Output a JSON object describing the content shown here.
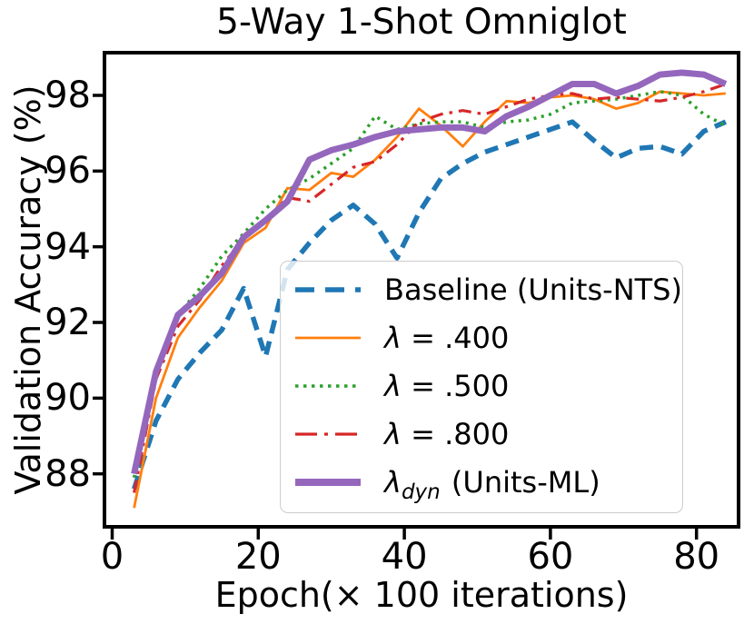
{
  "chart_data": {
    "type": "line",
    "title": "5-Way 1-Shot Omniglot",
    "x_axis": {
      "label": "Epoch(× 100 iterations)",
      "ticks": [
        0,
        20,
        40,
        60,
        80
      ],
      "range": [
        -1,
        86
      ]
    },
    "y_axis": {
      "label": "Validation Accuracy (%)",
      "ticks": [
        88,
        90,
        92,
        94,
        96,
        98
      ],
      "range": [
        86.6,
        99.1
      ]
    },
    "grid": false,
    "legend_position": "inside lower-right",
    "x": [
      3,
      6,
      9,
      12,
      15,
      18,
      21,
      24,
      27,
      30,
      33,
      36,
      39,
      42,
      45,
      48,
      51,
      54,
      57,
      60,
      63,
      66,
      69,
      72,
      75,
      78,
      81,
      84
    ],
    "series": [
      {
        "name": "Baseline (Units-NTS)",
        "color": "#1f77b4",
        "style": "dashed",
        "width": 5.5,
        "values": [
          87.6,
          89.4,
          90.5,
          91.2,
          91.8,
          92.9,
          91.1,
          93.4,
          94.1,
          94.7,
          95.1,
          94.6,
          93.7,
          94.9,
          95.8,
          96.2,
          96.5,
          96.7,
          96.9,
          97.1,
          97.3,
          96.8,
          96.35,
          96.6,
          96.65,
          96.45,
          97.05,
          97.3
        ]
      },
      {
        "name": "λ = .400",
        "color": "#ff7f0e",
        "style": "solid",
        "width": 2.8,
        "values": [
          87.1,
          90.0,
          91.6,
          92.4,
          93.1,
          94.1,
          94.5,
          95.55,
          95.5,
          95.95,
          95.85,
          96.3,
          96.9,
          97.65,
          97.2,
          96.65,
          97.3,
          97.85,
          97.8,
          97.95,
          98.0,
          97.9,
          97.65,
          97.8,
          98.1,
          98.05,
          98.0,
          98.05
        ]
      },
      {
        "name": "λ = .500",
        "color": "#2ca02c",
        "style": "dotted",
        "width": 3.5,
        "values": [
          87.9,
          90.8,
          92.2,
          92.9,
          93.75,
          94.35,
          95.0,
          95.5,
          95.8,
          96.2,
          96.6,
          97.45,
          97.1,
          97.25,
          97.3,
          97.3,
          97.15,
          97.3,
          97.35,
          97.5,
          97.8,
          97.85,
          97.9,
          98.0,
          98.1,
          98.0,
          97.5,
          97.2
        ]
      },
      {
        "name": "λ = .800",
        "color": "#d62728",
        "style": "dashdot",
        "width": 3.2,
        "values": [
          87.5,
          90.5,
          91.9,
          92.6,
          93.5,
          94.2,
          94.7,
          95.3,
          95.2,
          95.65,
          96.1,
          96.25,
          96.7,
          97.3,
          97.5,
          97.6,
          97.5,
          97.7,
          97.9,
          98.0,
          98.05,
          97.9,
          97.95,
          97.9,
          97.85,
          97.95,
          98.1,
          98.3
        ]
      },
      {
        "name": "λ_dyn (Units-ML)",
        "color": "#9467bd",
        "style": "solid",
        "width": 7,
        "values": [
          88.0,
          90.7,
          92.2,
          92.7,
          93.3,
          94.25,
          94.7,
          95.2,
          96.3,
          96.55,
          96.7,
          96.9,
          97.05,
          97.1,
          97.15,
          97.15,
          97.05,
          97.45,
          97.7,
          98.0,
          98.3,
          98.3,
          98.05,
          98.25,
          98.55,
          98.6,
          98.55,
          98.3
        ]
      }
    ],
    "legend": {
      "items": [
        {
          "sym": "",
          "sub": "",
          "rest": "Baseline (Units-NTS)",
          "series": 0
        },
        {
          "sym": "λ",
          "sub": "",
          "rest": " = .400",
          "series": 1
        },
        {
          "sym": "λ",
          "sub": "",
          "rest": " = .500",
          "series": 2
        },
        {
          "sym": "λ",
          "sub": "",
          "rest": " = .800",
          "series": 3
        },
        {
          "sym": "λ",
          "sub": "dyn",
          "rest": " (Units-ML)",
          "series": 4
        }
      ]
    }
  }
}
